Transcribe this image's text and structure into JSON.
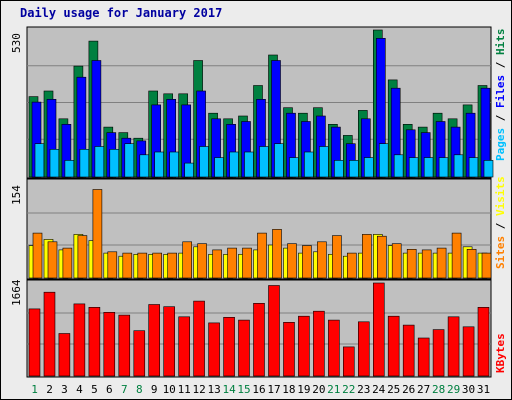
{
  "chart_data": [
    {
      "type": "bar",
      "title": "Daily usage for January 2017",
      "categories": [
        "1",
        "2",
        "3",
        "4",
        "5",
        "6",
        "7",
        "8",
        "9",
        "10",
        "11",
        "12",
        "13",
        "14",
        "15",
        "16",
        "17",
        "18",
        "19",
        "20",
        "21",
        "22",
        "23",
        "24",
        "25",
        "26",
        "27",
        "28",
        "29",
        "30",
        "31"
      ],
      "weekend_days": [
        "1",
        "7",
        "8",
        "14",
        "15",
        "21",
        "22",
        "28",
        "29"
      ],
      "ylabel_max": "530",
      "ylim": [
        0,
        530
      ],
      "legend": [
        "Pages",
        "Files",
        "Hits"
      ],
      "series": [
        {
          "name": "Hits",
          "color": "#008040",
          "values": [
            290,
            310,
            210,
            400,
            490,
            180,
            160,
            140,
            310,
            300,
            300,
            420,
            230,
            210,
            220,
            330,
            440,
            250,
            230,
            250,
            190,
            150,
            240,
            530,
            350,
            190,
            180,
            230,
            210,
            260,
            330
          ]
        },
        {
          "name": "Files",
          "color": "#0000ff",
          "values": [
            270,
            280,
            190,
            360,
            420,
            160,
            140,
            130,
            260,
            280,
            260,
            310,
            210,
            190,
            200,
            280,
            420,
            230,
            200,
            220,
            180,
            120,
            210,
            500,
            320,
            170,
            160,
            200,
            180,
            230,
            320
          ]
        },
        {
          "name": "Pages",
          "color": "#00c0ff",
          "values": [
            120,
            100,
            60,
            100,
            110,
            100,
            120,
            80,
            90,
            90,
            50,
            110,
            70,
            90,
            90,
            110,
            120,
            70,
            90,
            110,
            60,
            60,
            70,
            120,
            80,
            70,
            70,
            70,
            80,
            70,
            60
          ]
        }
      ]
    },
    {
      "type": "bar",
      "ylabel_max": "154",
      "ylim": [
        0,
        154
      ],
      "legend": [
        "Sites",
        "Visits"
      ],
      "series": [
        {
          "name": "Visits",
          "color": "#ffff00",
          "values": [
            52,
            62,
            45,
            70,
            60,
            40,
            35,
            38,
            38,
            38,
            40,
            50,
            38,
            38,
            38,
            45,
            53,
            48,
            40,
            42,
            38,
            35,
            40,
            70,
            52,
            40,
            40,
            40,
            40,
            50,
            40
          ]
        },
        {
          "name": "Sites",
          "color": "#ff8000",
          "values": [
            72,
            58,
            48,
            68,
            142,
            42,
            40,
            40,
            40,
            40,
            58,
            55,
            45,
            48,
            48,
            72,
            78,
            55,
            52,
            58,
            68,
            40,
            70,
            67,
            55,
            46,
            45,
            48,
            72,
            46,
            40
          ]
        }
      ]
    },
    {
      "type": "bar",
      "ylabel_max": "1664",
      "ylim": [
        0,
        1664
      ],
      "legend": [
        "KBytes"
      ],
      "series": [
        {
          "name": "KBytes",
          "color": "#ff0000",
          "values": [
            1200,
            1500,
            760,
            1290,
            1230,
            1140,
            1090,
            810,
            1280,
            1240,
            1060,
            1340,
            950,
            1050,
            1000,
            1300,
            1620,
            960,
            1070,
            1160,
            1000,
            520,
            970,
            1664,
            1070,
            910,
            680,
            830,
            1060,
            880,
            1230
          ]
        }
      ]
    }
  ],
  "colors": {
    "title": "#0000a0",
    "panel_background": "#c0c0c0",
    "grid": "#808080",
    "weekday_label": "#000000",
    "weekend_label": "#008040",
    "separator": "#000000"
  }
}
